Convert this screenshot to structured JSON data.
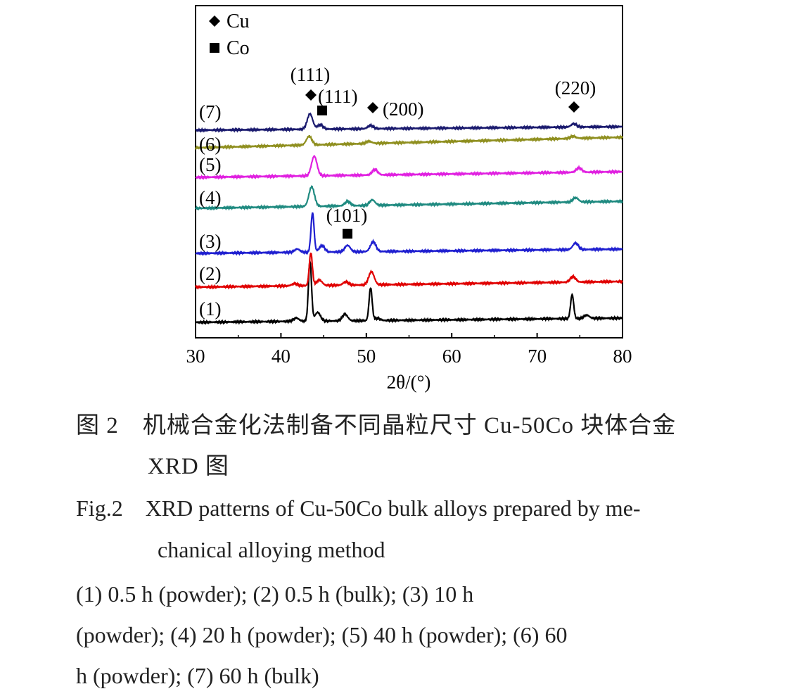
{
  "chart_data": {
    "type": "line",
    "title": "",
    "xlabel": "2θ/(°)",
    "ylabel": "",
    "xlim": [
      30,
      80
    ],
    "xticks": [
      30,
      40,
      50,
      60,
      70,
      80
    ],
    "grid": false,
    "legend": {
      "placement": "top-left",
      "entries": [
        {
          "label": "Cu",
          "marker": "diamond"
        },
        {
          "label": "Co",
          "marker": "square"
        }
      ]
    },
    "series": [
      {
        "name": "(1)",
        "color": "#000000",
        "baseline": 0,
        "peaks": [
          [
            41.8,
            3
          ],
          [
            43.4,
            55
          ],
          [
            44.3,
            8
          ],
          [
            47.5,
            6
          ],
          [
            50.5,
            30
          ],
          [
            51.3,
            2
          ],
          [
            74.1,
            22
          ],
          [
            75.8,
            3
          ]
        ]
      },
      {
        "name": "(2)",
        "color": "#e00000",
        "baseline": 0,
        "peaks": [
          [
            41.6,
            2
          ],
          [
            43.5,
            30
          ],
          [
            44.5,
            5
          ],
          [
            47.6,
            3
          ],
          [
            50.6,
            12
          ],
          [
            74.2,
            5
          ]
        ]
      },
      {
        "name": "(3)",
        "color": "#1f1fd0",
        "baseline": 0,
        "peaks": [
          [
            41.9,
            3
          ],
          [
            43.7,
            36
          ],
          [
            44.8,
            6
          ],
          [
            47.8,
            6
          ],
          [
            50.8,
            9
          ],
          [
            74.5,
            6
          ]
        ]
      },
      {
        "name": "(4)",
        "color": "#1f8a80",
        "baseline": 0,
        "peaks": [
          [
            43.6,
            18
          ],
          [
            47.8,
            4
          ],
          [
            50.7,
            5
          ],
          [
            74.5,
            4
          ]
        ]
      },
      {
        "name": "(5)",
        "color": "#e020e0",
        "baseline": 0,
        "peaks": [
          [
            43.9,
            18
          ],
          [
            51.0,
            5
          ],
          [
            74.9,
            4
          ]
        ]
      },
      {
        "name": "(6)",
        "color": "#8f8f1f",
        "baseline": 0,
        "peaks": [
          [
            43.3,
            8
          ],
          [
            50.3,
            2
          ],
          [
            74.2,
            2
          ]
        ]
      },
      {
        "name": "(7)",
        "color": "#1a1a6e",
        "baseline": 0,
        "peaks": [
          [
            43.4,
            14
          ],
          [
            44.6,
            4
          ],
          [
            50.5,
            3
          ],
          [
            74.3,
            3
          ]
        ]
      }
    ],
    "annotations": [
      {
        "label": "(111)",
        "marker": "diamond",
        "x": 43.4
      },
      {
        "label": "(111)",
        "marker": "square",
        "x": 44.8
      },
      {
        "label": "(200)",
        "marker": "diamond",
        "x": 50.5
      },
      {
        "label": "(220)",
        "marker": "diamond",
        "x": 74.3
      },
      {
        "label": "(101)",
        "marker": "square",
        "x": 47.8
      }
    ]
  },
  "caption": {
    "cn_line1": "图 2　机械合金化法制备不同晶粒尺寸 Cu-50Co 块体合金",
    "cn_line2": "XRD 图",
    "en_line1": "Fig.2　XRD patterns of Cu-50Co bulk alloys prepared by me-",
    "en_line2": "chanical alloying method",
    "legend_line1": "(1) 0.5 h (powder); (2) 0.5 h (bulk); (3) 10 h",
    "legend_line2": "(powder); (4) 20 h (powder); (5) 40 h (powder); (6) 60",
    "legend_line3": "h (powder); (7) 60 h (bulk)"
  }
}
